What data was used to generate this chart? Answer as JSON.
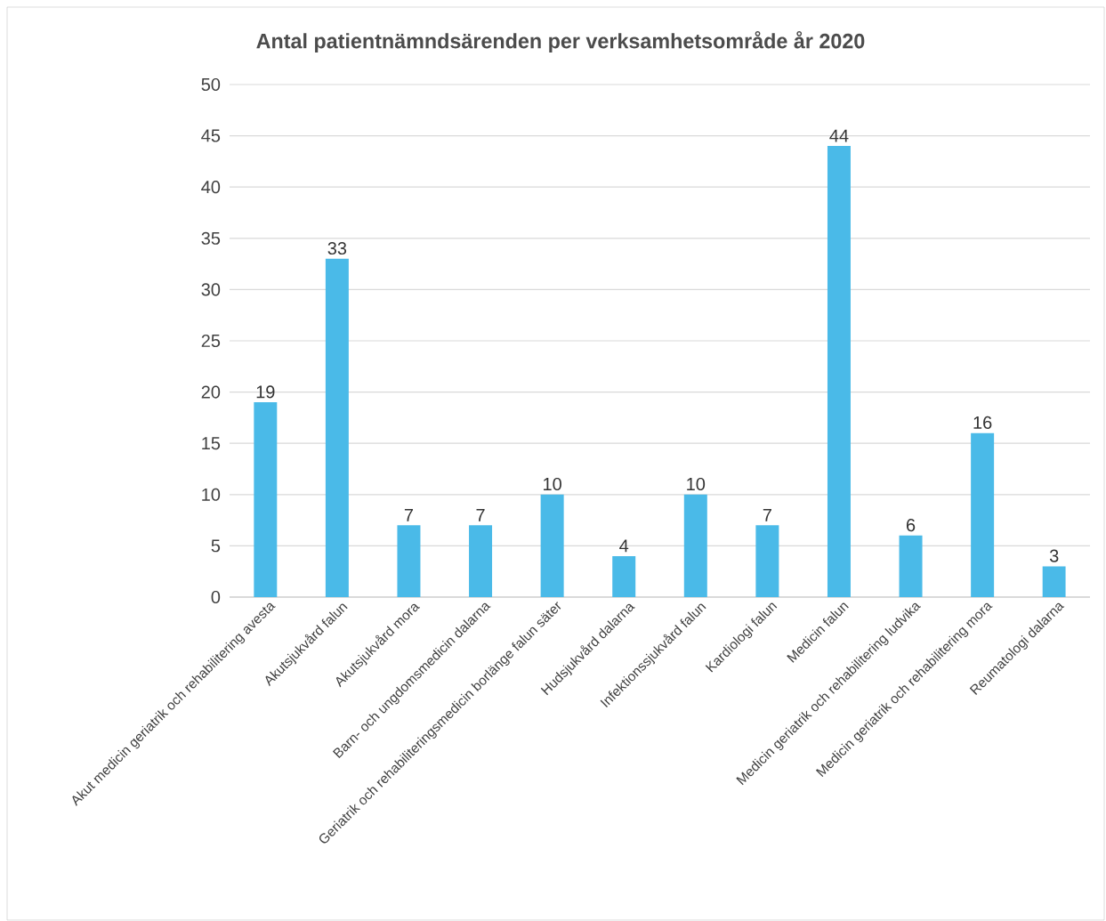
{
  "chart_data": {
    "type": "bar",
    "title": "Antal patientnämndsärenden per verksamhetsområde år 2020",
    "categories": [
      "Akut medicin geriatrik och rehabilitering avesta",
      "Akutsjukvård falun",
      "Akutsjukvård mora",
      "Barn- och ungdomsmedicin dalarna",
      "Geriatrik och rehabiliteringsmedicin borlänge falun säter",
      "Hudsjukvård dalarna",
      "Infektionssjukvård falun",
      "Kardiologi falun",
      "Medicin falun",
      "Medicin geriatrik och rehabilitering ludvika",
      "Medicin geriatrik och rehabilitering mora",
      "Reumatologi dalarna"
    ],
    "values": [
      19,
      33,
      7,
      7,
      10,
      4,
      10,
      7,
      44,
      6,
      16,
      3
    ],
    "color": "#4abae8",
    "ylim": [
      0,
      50
    ],
    "yticks": [
      0,
      5,
      10,
      15,
      20,
      25,
      30,
      35,
      40,
      45,
      50
    ],
    "grid": "y",
    "data_labels": true
  }
}
